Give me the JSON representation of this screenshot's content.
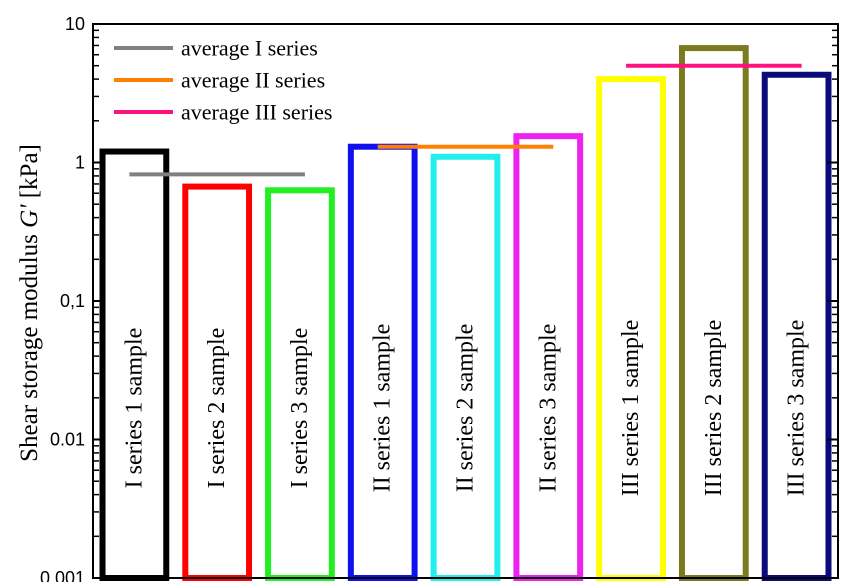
{
  "chart_data": {
    "type": "bar",
    "ylabel_main": "Shear storage modulus ",
    "ylabel_symbol": "G'",
    "ylabel_unit": " [kPa]",
    "yscale": "log",
    "ylim": [
      0.001,
      10
    ],
    "yticks": [
      {
        "value": 0.001,
        "label": "0.001"
      },
      {
        "value": 0.01,
        "label": "0.01"
      },
      {
        "value": 0.1,
        "label": "0,1"
      },
      {
        "value": 1,
        "label": "1"
      },
      {
        "value": 10,
        "label": "10"
      }
    ],
    "categories": [
      "I series 1 sample",
      "I series 2 sample",
      "I series 3 sample",
      "II series 1 sample",
      "II series 2 sample",
      "II series 3 sample",
      "III series 1 sample",
      "III series 2 sample",
      "III series 3 sample"
    ],
    "values": [
      1.2,
      0.67,
      0.63,
      1.3,
      1.1,
      1.55,
      4.0,
      6.7,
      4.3
    ],
    "bar_colors": [
      "#000000",
      "#ff0000",
      "#22ee22",
      "#1010ee",
      "#22eeee",
      "#ee22ee",
      "#ffff00",
      "#7a7a1e",
      "#0a0a78"
    ],
    "averages": [
      {
        "name": "average I series",
        "value": 0.82,
        "from": 0,
        "to": 2,
        "color": "#808080"
      },
      {
        "name": "average II series",
        "value": 1.3,
        "from": 3,
        "to": 5,
        "color": "#ff8000"
      },
      {
        "name": "average III series",
        "value": 5.0,
        "from": 6,
        "to": 8,
        "color": "#ff1080"
      }
    ],
    "legend_position": "top-left",
    "grid": false
  }
}
